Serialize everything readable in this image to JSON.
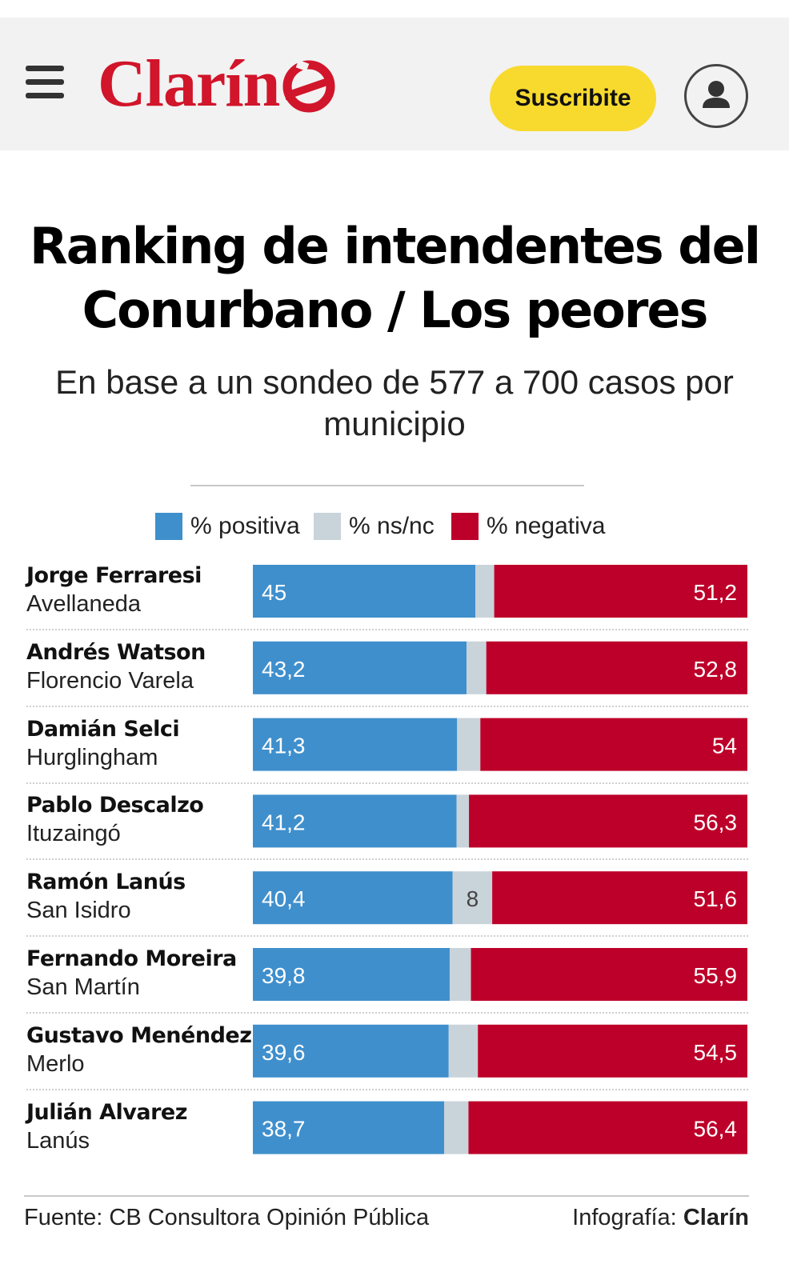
{
  "header": {
    "logo_text": "Clarín",
    "subscribe_label": "Suscribite",
    "menu_icon": "hamburger-menu-icon",
    "user_icon": "user-icon",
    "colors": {
      "header_bg": "#f2f2f2",
      "logo": "#d1152a",
      "subscribe_bg": "#f8da2e"
    }
  },
  "article": {
    "title": "Ranking de intendentes del Conurbano / Los peores",
    "subtitle": "En base a un sondeo de 577 a 700 casos por municipio"
  },
  "legend": [
    {
      "label": "% positiva",
      "color": "#3f8fcc"
    },
    {
      "label": "% ns/nc",
      "color": "#c9d3da"
    },
    {
      "label": "% negativa",
      "color": "#bd0029"
    }
  ],
  "chart_data": {
    "type": "bar",
    "orientation": "horizontal",
    "stacked": true,
    "title": "Ranking de intendentes del Conurbano / Los peores",
    "subtitle": "En base a un sondeo de 577 a 700 casos por municipio",
    "xlim": [
      0,
      100
    ],
    "grid": false,
    "legend_position": "top",
    "categories": [
      {
        "name": "Jorge Ferraresi",
        "place": "Avellaneda"
      },
      {
        "name": "Andrés Watson",
        "place": "Florencio Varela"
      },
      {
        "name": "Damián Selci",
        "place": "Hurglingham"
      },
      {
        "name": "Pablo Descalzo",
        "place": "Ituzaingó"
      },
      {
        "name": "Ramón Lanús",
        "place": "San Isidro"
      },
      {
        "name": "Fernando Moreira",
        "place": "San Martín"
      },
      {
        "name": "Gustavo Menéndez",
        "place": "Merlo"
      },
      {
        "name": "Julián Alvarez",
        "place": "Lanús"
      }
    ],
    "series": [
      {
        "name": "% positiva",
        "color": "#3f8fcc",
        "values": [
          45,
          43.2,
          41.3,
          41.2,
          40.4,
          39.8,
          39.6,
          38.7
        ],
        "labels": [
          "45",
          "43,2",
          "41,3",
          "41,2",
          "40,4",
          "39,8",
          "39,6",
          "38,7"
        ]
      },
      {
        "name": "% ns/nc",
        "color": "#c9d3da",
        "values": [
          3.8,
          4.0,
          4.7,
          2.5,
          8,
          4.3,
          5.9,
          4.9
        ],
        "labels": [
          "",
          "",
          "",
          "",
          "8",
          "",
          "",
          ""
        ]
      },
      {
        "name": "% negativa",
        "color": "#bd0029",
        "values": [
          51.2,
          52.8,
          54,
          56.3,
          51.6,
          55.9,
          54.5,
          56.4
        ],
        "labels": [
          "51,2",
          "52,8",
          "54",
          "56,3",
          "51,6",
          "55,9",
          "54,5",
          "56,4"
        ]
      }
    ]
  },
  "footer": {
    "source": "Fuente: CB Consultora Opinión Pública",
    "credit_prefix": "Infografía: ",
    "credit_brand": "Clarín"
  }
}
